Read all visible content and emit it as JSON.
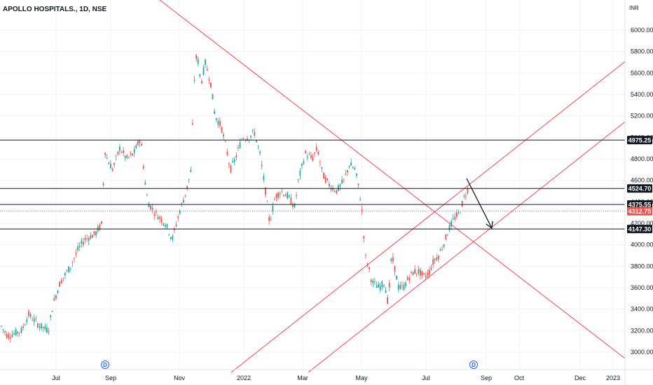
{
  "header": {
    "title": "APOLLO HOSPITALS., 1D, NSE"
  },
  "chart_data": {
    "type": "candlestick",
    "currency": "INR",
    "y_ticks": [
      "3000.00",
      "3200.00",
      "3400.00",
      "3600.00",
      "3800.00",
      "4000.00",
      "4200.00",
      "4400.00",
      "4600.00",
      "4800.00",
      "5000.00",
      "5200.00",
      "5400.00",
      "5600.00",
      "5800.00",
      "6000.00"
    ],
    "x_ticks": [
      "Jul",
      "Sep",
      "Nov",
      "2022",
      "Mar",
      "May",
      "Jul",
      "Sep",
      "Oct",
      "Dec",
      "2023"
    ],
    "levels": [
      {
        "label": "4975.25",
        "value": 4975.25,
        "color": "#131722"
      },
      {
        "label": "4524.70",
        "value": 4524.7,
        "color": "#131722"
      },
      {
        "label": "4375.55",
        "value": 4375.55,
        "color": "#131722"
      },
      {
        "label": "4312.75",
        "value": 4312.75,
        "color": "#ef5350"
      },
      {
        "label": "4147.30",
        "value": 4147.3,
        "color": "#131722"
      }
    ],
    "dividend_markers": [
      "D",
      "D"
    ],
    "colors": {
      "up": "#26a69a",
      "down": "#ef5350",
      "trendline": "#f23645",
      "level": "#131722"
    }
  }
}
